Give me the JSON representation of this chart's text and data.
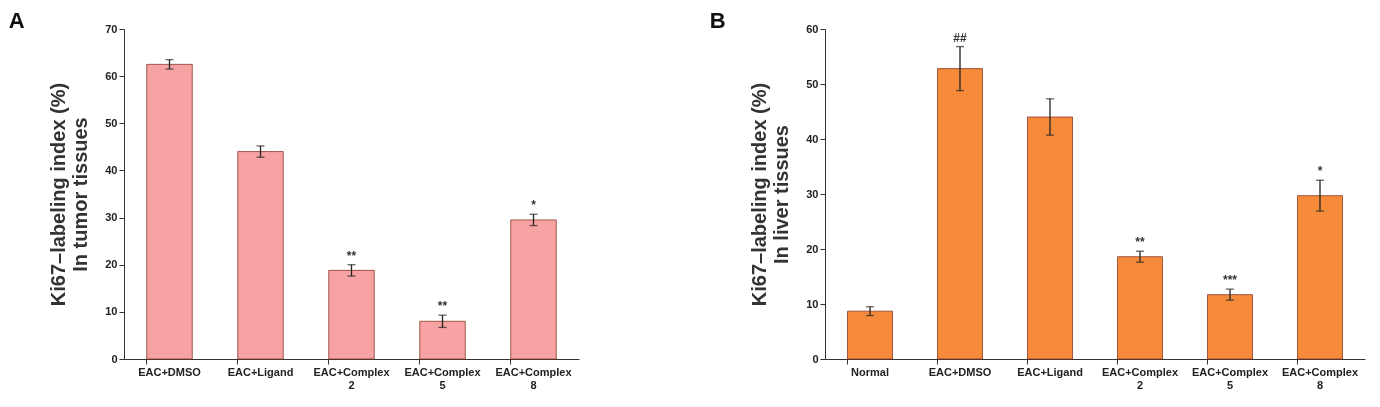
{
  "chart_data": [
    {
      "type": "bar",
      "title": "A",
      "ylabel": "Ki67–labeling index (%)\nIn tumor tissues",
      "categories": [
        "EAC+DMSO",
        "EAC+Ligand",
        "EAC+Complex 2",
        "EAC+Complex 5",
        "EAC+Complex 8"
      ],
      "values": [
        62.5,
        44,
        18.8,
        8,
        29.5
      ],
      "errors": [
        1,
        1.2,
        1.2,
        1.3,
        1.2
      ],
      "color": "#f7a3a3",
      "ylim": [
        0,
        70
      ],
      "yticks": [
        0,
        10,
        20,
        30,
        40,
        50,
        60,
        70
      ],
      "annotations": [
        {
          "text": "**",
          "x": "EAC+Complex 2",
          "y": 20
        },
        {
          "text": "**",
          "x": "EAC+Complex 5",
          "y": 9.3
        },
        {
          "text": "*",
          "x": "EAC+Complex 8",
          "y": 30.7
        }
      ]
    },
    {
      "type": "bar",
      "title": "B",
      "ylabel": "Ki67–labeling index (%)\nIn liver tissues",
      "categories": [
        "Normal",
        "EAC+DMSO",
        "EAC+Ligand",
        "EAC+Complex 2",
        "EAC+Complex 5",
        "EAC+Complex 8"
      ],
      "values": [
        8.7,
        52.8,
        44,
        18.6,
        11.7,
        29.7
      ],
      "errors": [
        0.8,
        4,
        3.3,
        1,
        1,
        2.8
      ],
      "color": "#f58b3a",
      "ylim": [
        0,
        60
      ],
      "yticks": [
        0,
        10,
        20,
        30,
        40,
        50,
        60
      ],
      "annotations": [
        {
          "text": "##",
          "x": "EAC+DMSO",
          "y": 56.8
        },
        {
          "text": "**",
          "x": "EAC+Complex 2",
          "y": 19.6
        },
        {
          "text": "***",
          "x": "EAC+Complex 5",
          "y": 12.7
        },
        {
          "text": "*",
          "x": "EAC+Complex 8",
          "y": 32.5
        }
      ]
    }
  ]
}
